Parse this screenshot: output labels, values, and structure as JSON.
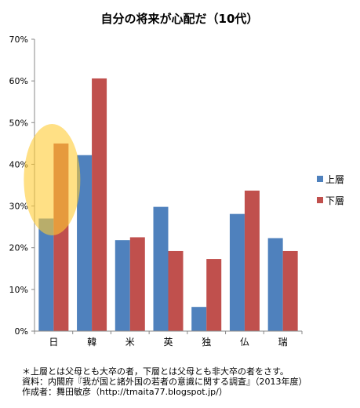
{
  "chart_data": {
    "type": "bar",
    "title": "自分の将来が心配だ（10代）",
    "categories": [
      "日",
      "韓",
      "米",
      "英",
      "独",
      "仏",
      "瑞"
    ],
    "series": [
      {
        "name": "上層",
        "color": "#4f81bd",
        "values": [
          27.0,
          42.2,
          21.8,
          29.8,
          5.8,
          28.1,
          22.3
        ]
      },
      {
        "name": "下層",
        "color": "#c0504d",
        "values": [
          45.0,
          60.6,
          22.5,
          19.2,
          17.3,
          33.7,
          19.2
        ]
      }
    ],
    "ylim": [
      0,
      70
    ],
    "yticks": [
      "0%",
      "10%",
      "20%",
      "30%",
      "40%",
      "50%",
      "60%",
      "70%"
    ],
    "legend_position": "right",
    "grid": false,
    "highlight": {
      "category": "日",
      "color": "#ffcc33"
    }
  },
  "notes": [
    "＊上層とは父母とも大卒の者，下層とは父母とも非大卒の者をさす。",
    "資料：内閣府『我が国と諸外国の若者の意識に関する調査』（2013年度）",
    "作成者：舞田敏彦（http://tmaita77.blogspot.jp/）"
  ]
}
